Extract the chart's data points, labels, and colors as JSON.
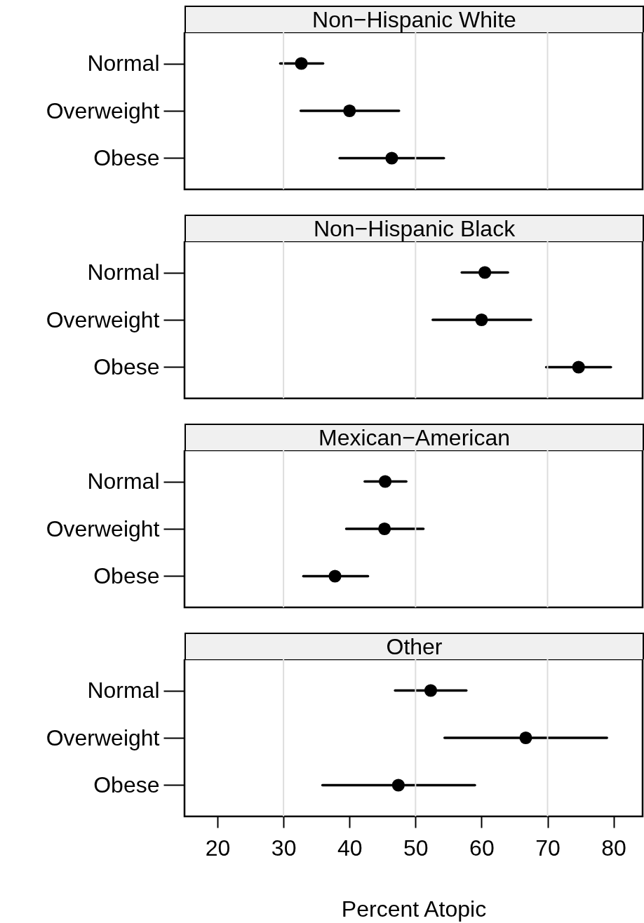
{
  "chart_data": [
    {
      "type": "scatter",
      "title": "Non−Hispanic White",
      "orientation": "horizontal",
      "categories": [
        "Normal",
        "Overweight",
        "Obese"
      ],
      "series": [
        {
          "color": "#000000",
          "values": [
            32.7,
            40.0,
            46.4
          ],
          "errors": [
            [
              29.5,
              36.0
            ],
            [
              32.6,
              47.5
            ],
            [
              38.5,
              54.3
            ]
          ]
        }
      ],
      "marker": "circle",
      "xlim": [
        15,
        84.4
      ],
      "xticks": [
        20,
        30,
        40,
        50,
        60,
        70,
        80
      ],
      "tick_labels": "y",
      "ref_lines": [
        {
          "axis": "x",
          "value": 30,
          "color": "#dddddd"
        },
        {
          "axis": "x",
          "value": 50,
          "color": "#dddddd"
        },
        {
          "axis": "x",
          "value": 70,
          "color": "#dddddd"
        }
      ]
    },
    {
      "type": "scatter",
      "title": "Non−Hispanic Black",
      "orientation": "horizontal",
      "categories": [
        "Normal",
        "Overweight",
        "Obese"
      ],
      "series": [
        {
          "color": "#000000",
          "values": [
            60.5,
            60.0,
            74.7
          ],
          "errors": [
            [
              57.0,
              64.0
            ],
            [
              52.6,
              67.5
            ],
            [
              69.8,
              79.6
            ]
          ]
        }
      ],
      "marker": "circle",
      "xlim": [
        15,
        84.4
      ],
      "xticks": [
        20,
        30,
        40,
        50,
        60,
        70,
        80
      ],
      "tick_labels": "y",
      "ref_lines": [
        {
          "axis": "x",
          "value": 30,
          "color": "#dddddd"
        },
        {
          "axis": "x",
          "value": 50,
          "color": "#dddddd"
        },
        {
          "axis": "x",
          "value": 70,
          "color": "#dddddd"
        }
      ]
    },
    {
      "type": "scatter",
      "title": "Mexican−American",
      "orientation": "horizontal",
      "categories": [
        "Normal",
        "Overweight",
        "Obese"
      ],
      "series": [
        {
          "color": "#000000",
          "values": [
            45.4,
            45.3,
            37.8
          ],
          "errors": [
            [
              42.3,
              48.6
            ],
            [
              39.5,
              51.2
            ],
            [
              33.0,
              42.8
            ]
          ]
        }
      ],
      "marker": "circle",
      "xlim": [
        15,
        84.4
      ],
      "xticks": [
        20,
        30,
        40,
        50,
        60,
        70,
        80
      ],
      "tick_labels": "y",
      "ref_lines": [
        {
          "axis": "x",
          "value": 30,
          "color": "#dddddd"
        },
        {
          "axis": "x",
          "value": 50,
          "color": "#dddddd"
        },
        {
          "axis": "x",
          "value": 70,
          "color": "#dddddd"
        }
      ]
    },
    {
      "type": "scatter",
      "title": "Other",
      "orientation": "horizontal",
      "categories": [
        "Normal",
        "Overweight",
        "Obese"
      ],
      "xlabel": "Percent Atopic",
      "series": [
        {
          "color": "#000000",
          "values": [
            52.3,
            66.7,
            47.4
          ],
          "errors": [
            [
              46.9,
              57.7
            ],
            [
              54.4,
              79.0
            ],
            [
              35.9,
              59.0
            ]
          ]
        }
      ],
      "marker": "circle",
      "xlim": [
        15,
        84.4
      ],
      "xticks": [
        20,
        30,
        40,
        50,
        60,
        70,
        80
      ],
      "ref_lines": [
        {
          "axis": "x",
          "value": 30,
          "color": "#dddddd"
        },
        {
          "axis": "x",
          "value": 50,
          "color": "#dddddd"
        },
        {
          "axis": "x",
          "value": 70,
          "color": "#dddddd"
        }
      ]
    }
  ]
}
